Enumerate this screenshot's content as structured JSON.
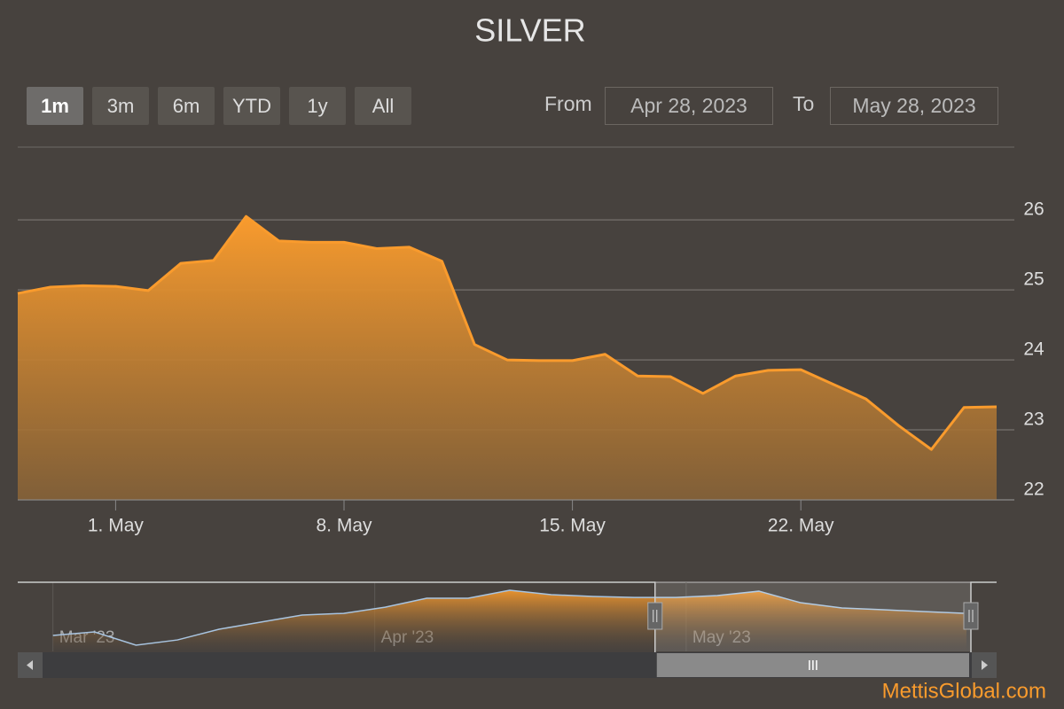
{
  "chart_data": {
    "type": "area",
    "title": "SILVER",
    "color": "#f99b2d",
    "x": [
      "2023-04-28",
      "2023-04-29",
      "2023-04-30",
      "2023-05-01",
      "2023-05-02",
      "2023-05-03",
      "2023-05-04",
      "2023-05-05",
      "2023-05-06",
      "2023-05-07",
      "2023-05-08",
      "2023-05-09",
      "2023-05-10",
      "2023-05-11",
      "2023-05-12",
      "2023-05-13",
      "2023-05-14",
      "2023-05-15",
      "2023-05-16",
      "2023-05-17",
      "2023-05-18",
      "2023-05-19",
      "2023-05-20",
      "2023-05-21",
      "2023-05-22",
      "2023-05-23",
      "2023-05-24",
      "2023-05-25",
      "2023-05-26",
      "2023-05-27",
      "2023-05-28"
    ],
    "values": [
      24.95,
      25.04,
      25.06,
      25.05,
      24.99,
      25.38,
      25.42,
      26.05,
      25.7,
      25.68,
      25.68,
      25.59,
      25.61,
      25.41,
      24.22,
      24.0,
      23.99,
      23.99,
      24.08,
      23.77,
      23.76,
      23.52,
      23.77,
      23.85,
      23.86,
      23.65,
      23.44,
      23.06,
      22.72,
      23.32,
      23.33
    ],
    "xlim": [
      "2023-04-28",
      "2023-05-28"
    ],
    "xticks": [
      {
        "value": "2023-05-01",
        "label": "1. May"
      },
      {
        "value": "2023-05-08",
        "label": "8. May"
      },
      {
        "value": "2023-05-15",
        "label": "15. May"
      },
      {
        "value": "2023-05-22",
        "label": "22. May"
      }
    ],
    "ylim": [
      22,
      27.04
    ],
    "yticks": [
      22,
      23,
      24,
      25,
      26
    ],
    "grid": true,
    "range_selector": {
      "buttons": [
        "1m",
        "3m",
        "6m",
        "YTD",
        "1y",
        "All"
      ],
      "selected": 0,
      "from_label": "From",
      "from": "Apr 28, 2023",
      "to_label": "To",
      "to": "May 28, 2023"
    },
    "navigator": {
      "color": "#a8c4e0",
      "x": [
        "2023-03-01",
        "2023-03-05",
        "2023-03-09",
        "2023-03-13",
        "2023-03-17",
        "2023-03-21",
        "2023-03-25",
        "2023-03-29",
        "2023-04-02",
        "2023-04-06",
        "2023-04-10",
        "2023-04-14",
        "2023-04-18",
        "2023-04-22",
        "2023-04-26",
        "2023-04-30",
        "2023-05-04",
        "2023-05-08",
        "2023-05-12",
        "2023-05-16",
        "2023-05-20",
        "2023-05-24",
        "2023-05-28"
      ],
      "values": [
        20.96,
        21.33,
        19.92,
        20.48,
        21.62,
        22.37,
        23.13,
        23.31,
        23.97,
        24.92,
        24.92,
        25.77,
        25.3,
        25.11,
        25.01,
        25.01,
        25.2,
        25.67,
        24.45,
        23.88,
        23.69,
        23.5,
        23.31
      ],
      "xlim": [
        "2023-02-28",
        "2023-05-28"
      ],
      "ylim": [
        19.26,
        26.62
      ],
      "xticks": [
        {
          "value": "2023-03-01",
          "label": "Mar '23"
        },
        {
          "value": "2023-04-01",
          "label": "Apr '23"
        },
        {
          "value": "2023-05-01",
          "label": "May '23"
        }
      ]
    },
    "credit": "MettisGlobal.com"
  }
}
